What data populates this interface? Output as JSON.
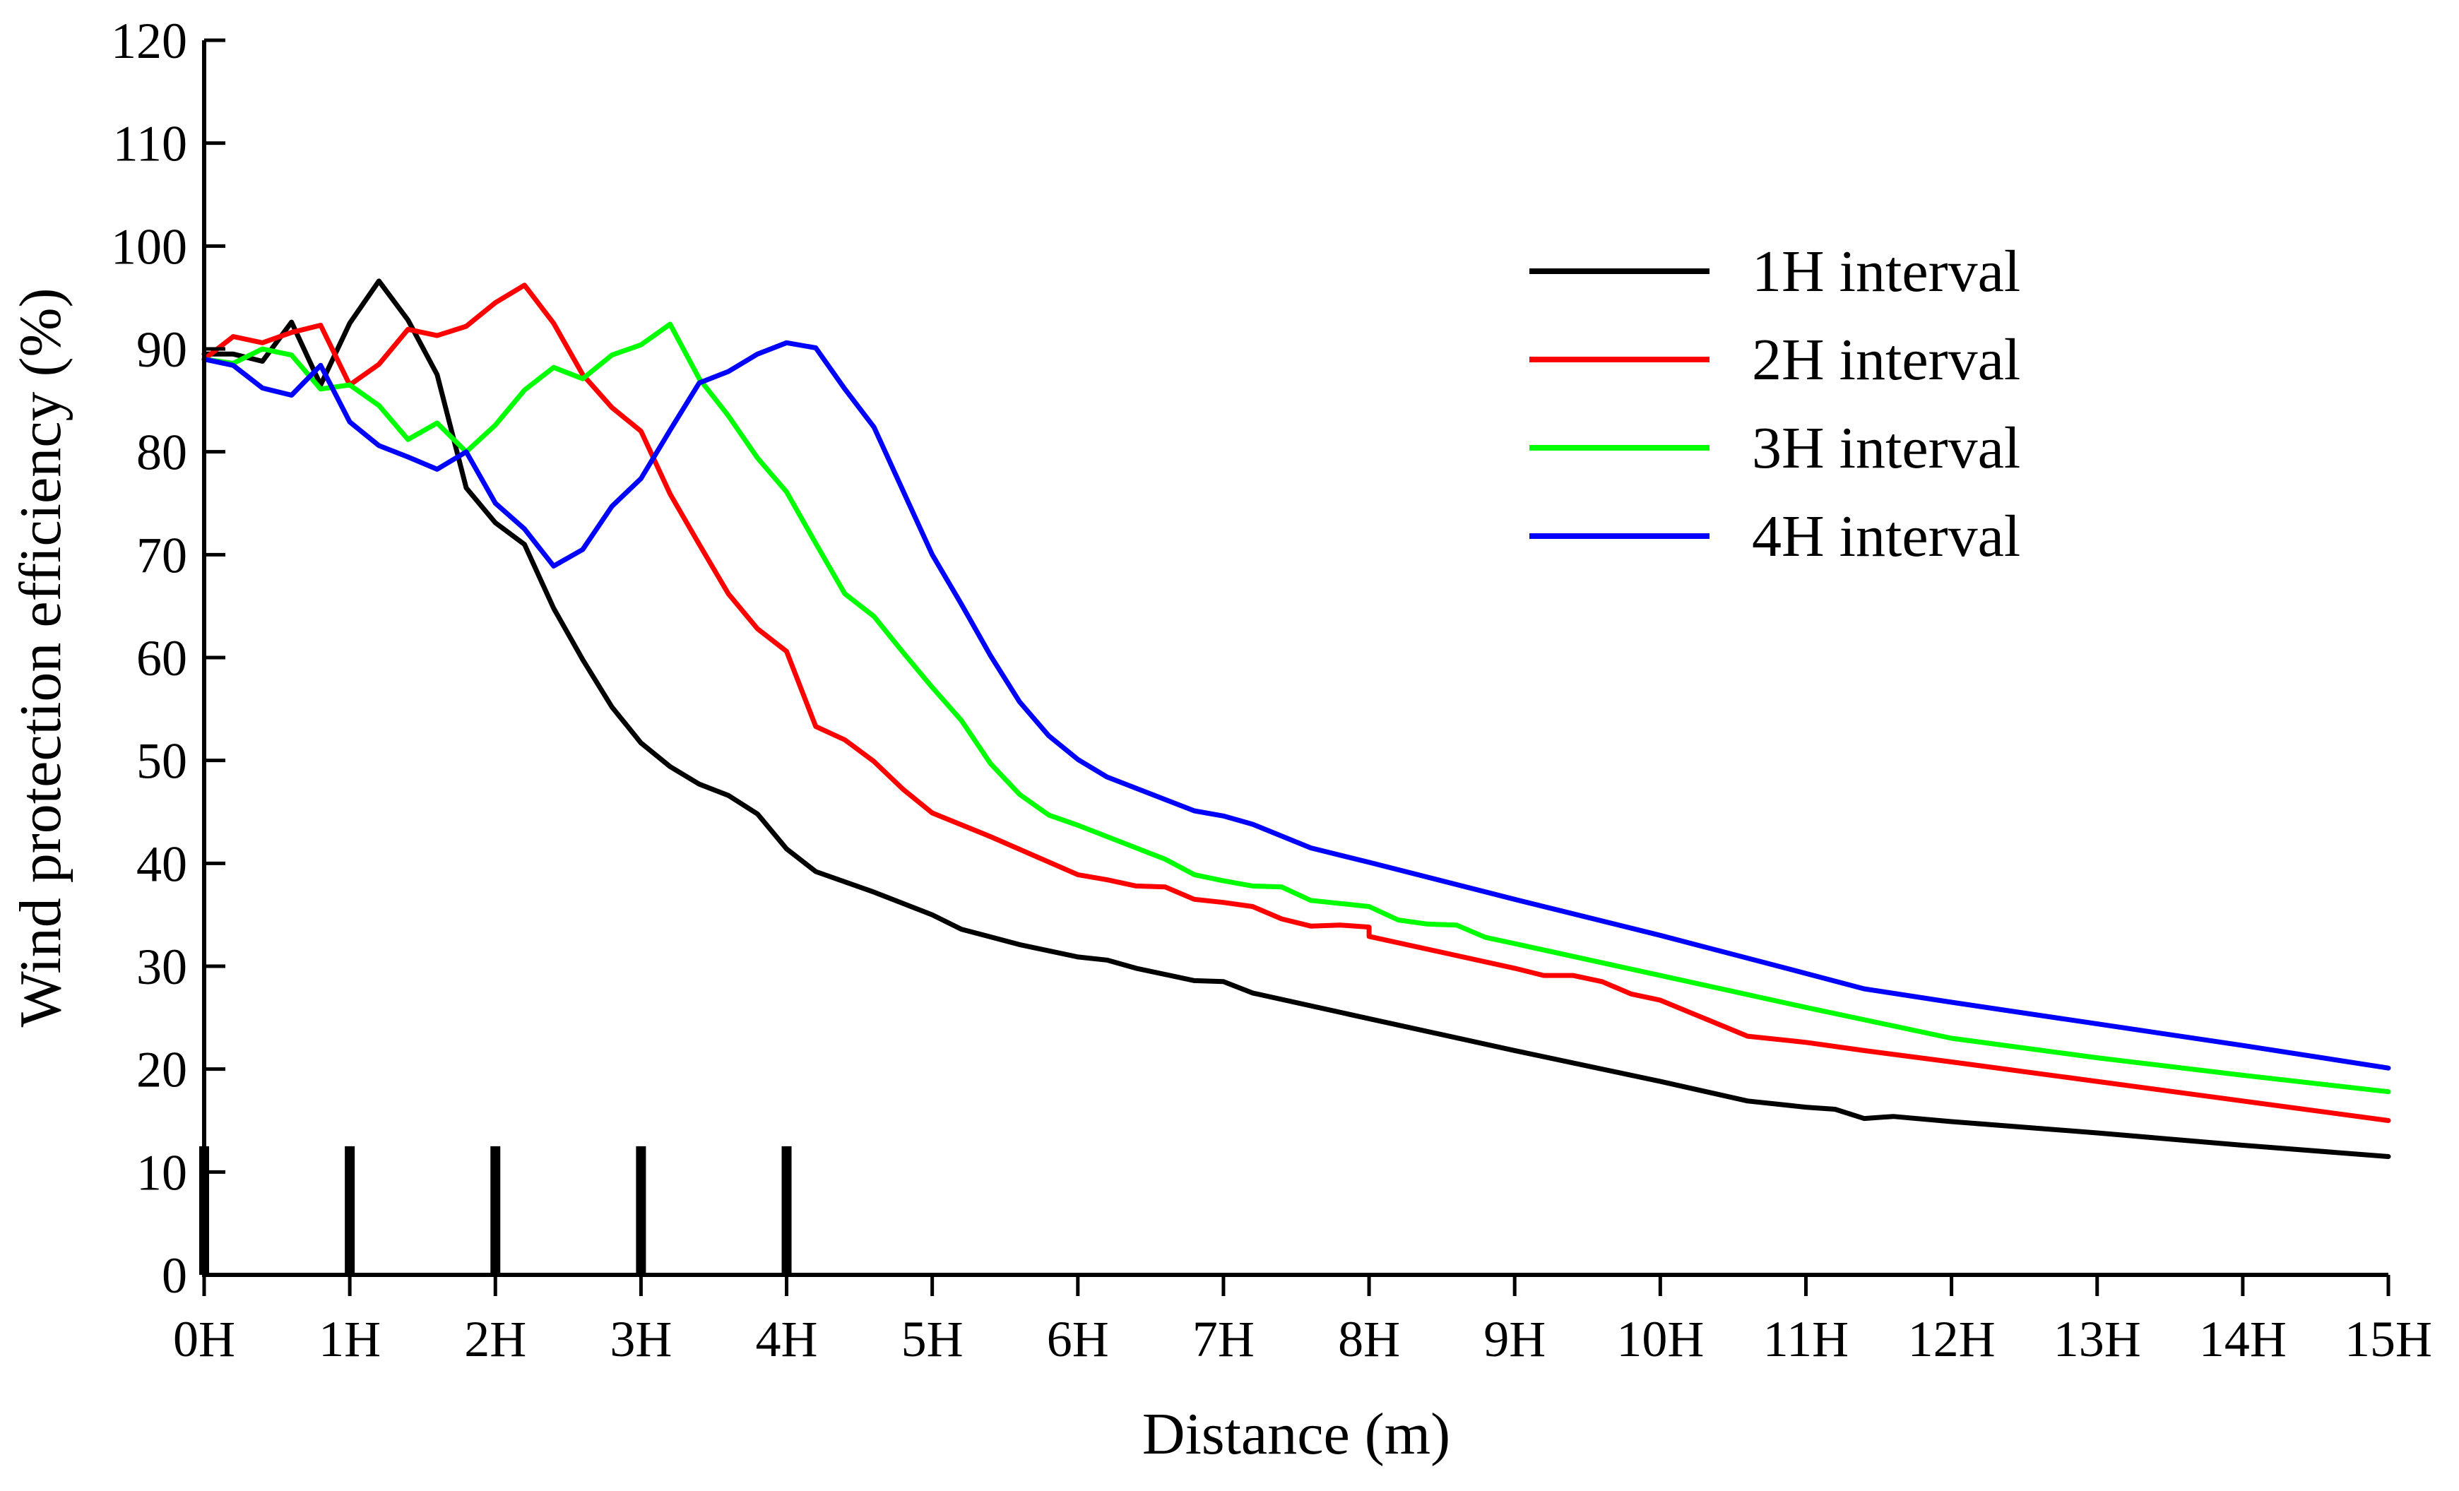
{
  "chart_data": {
    "type": "line",
    "title": "",
    "xlabel": "Distance (m)",
    "ylabel": "Wind protection efficiency (%)",
    "xlim": [
      0,
      15
    ],
    "ylim": [
      0,
      120
    ],
    "x_ticks": [
      0,
      1,
      2,
      3,
      4,
      5,
      6,
      7,
      8,
      9,
      10,
      11,
      12,
      13,
      14,
      15
    ],
    "x_tick_labels": [
      "0H",
      "1H",
      "2H",
      "3H",
      "4H",
      "5H",
      "6H",
      "7H",
      "8H",
      "9H",
      "10H",
      "11H",
      "12H",
      "13H",
      "14H",
      "15H"
    ],
    "y_ticks": [
      0,
      10,
      20,
      30,
      40,
      50,
      60,
      70,
      80,
      90,
      100,
      110,
      120
    ],
    "y_tick_labels": [
      "0",
      "10",
      "20",
      "30",
      "40",
      "50",
      "60",
      "70",
      "80",
      "90",
      "100",
      "110",
      "120"
    ],
    "legend_position": "upper-right",
    "barriers": {
      "positions": [
        0,
        1,
        2,
        3,
        4
      ],
      "height": 12.5,
      "color": "#000000"
    },
    "series": [
      {
        "name": "1H interval",
        "color": "#000000",
        "points": [
          [
            0,
            89.5
          ],
          [
            0.2,
            89.5
          ],
          [
            0.4,
            88.8
          ],
          [
            0.6,
            92.6
          ],
          [
            0.8,
            86.5
          ],
          [
            1.0,
            92.5
          ],
          [
            1.2,
            96.6
          ],
          [
            1.4,
            92.8
          ],
          [
            1.6,
            87.5
          ],
          [
            1.8,
            76.5
          ],
          [
            2.0,
            73.1
          ],
          [
            2.2,
            71
          ],
          [
            2.4,
            64.8
          ],
          [
            2.6,
            59.8
          ],
          [
            2.8,
            55.2
          ],
          [
            3.0,
            51.7
          ],
          [
            3.2,
            49.4
          ],
          [
            3.4,
            47.7
          ],
          [
            3.6,
            46.6
          ],
          [
            3.8,
            44.8
          ],
          [
            4.0,
            41.4
          ],
          [
            4.2,
            39.2
          ],
          [
            4.6,
            37.2
          ],
          [
            5.0,
            35
          ],
          [
            5.2,
            33.6
          ],
          [
            5.6,
            32.1
          ],
          [
            6.0,
            30.9
          ],
          [
            6.2,
            30.6
          ],
          [
            6.4,
            29.8
          ],
          [
            6.8,
            28.6
          ],
          [
            7.0,
            28.5
          ],
          [
            7.2,
            27.4
          ],
          [
            8.0,
            24.9
          ],
          [
            9.0,
            21.8
          ],
          [
            10.0,
            18.8
          ],
          [
            10.6,
            16.9
          ],
          [
            11.0,
            16.3
          ],
          [
            11.2,
            16.1
          ],
          [
            11.4,
            15.2
          ],
          [
            11.6,
            15.4
          ],
          [
            12.0,
            14.9
          ],
          [
            13.0,
            13.8
          ],
          [
            14.0,
            12.6
          ],
          [
            15.0,
            11.5
          ]
        ]
      },
      {
        "name": "2H interval",
        "color": "#ff0000",
        "points": [
          [
            0,
            89
          ],
          [
            0.2,
            91.2
          ],
          [
            0.4,
            90.6
          ],
          [
            0.6,
            91.6
          ],
          [
            0.8,
            92.3
          ],
          [
            1.0,
            86.5
          ],
          [
            1.2,
            88.5
          ],
          [
            1.4,
            91.9
          ],
          [
            1.6,
            91.3
          ],
          [
            1.8,
            92.2
          ],
          [
            2.0,
            94.5
          ],
          [
            2.2,
            96.2
          ],
          [
            2.4,
            92.5
          ],
          [
            2.6,
            87.5
          ],
          [
            2.8,
            84.3
          ],
          [
            3.0,
            82
          ],
          [
            3.2,
            75.9
          ],
          [
            3.4,
            71
          ],
          [
            3.6,
            66.2
          ],
          [
            3.8,
            62.8
          ],
          [
            4.0,
            60.6
          ],
          [
            4.2,
            53.3
          ],
          [
            4.4,
            52
          ],
          [
            4.6,
            49.9
          ],
          [
            4.8,
            47.2
          ],
          [
            5.0,
            44.9
          ],
          [
            5.4,
            42.6
          ],
          [
            6.0,
            38.9
          ],
          [
            6.2,
            38.4
          ],
          [
            6.4,
            37.8
          ],
          [
            6.6,
            37.7
          ],
          [
            6.8,
            36.5
          ],
          [
            7.0,
            36.2
          ],
          [
            7.2,
            35.8
          ],
          [
            7.4,
            34.6
          ],
          [
            7.6,
            33.9
          ],
          [
            7.8,
            34
          ],
          [
            8.0,
            33.8
          ],
          [
            8.0,
            32.9
          ],
          [
            9.0,
            29.8
          ],
          [
            9.2,
            29.1
          ],
          [
            9.4,
            29.1
          ],
          [
            9.6,
            28.5
          ],
          [
            9.8,
            27.3
          ],
          [
            10.0,
            26.7
          ],
          [
            10.6,
            23.2
          ],
          [
            11.0,
            22.6
          ],
          [
            11.4,
            21.8
          ],
          [
            12.0,
            20.7
          ],
          [
            13.0,
            18.8
          ],
          [
            14.0,
            16.9
          ],
          [
            15.0,
            15
          ]
        ]
      },
      {
        "name": "3H interval",
        "color": "#00ff00",
        "points": [
          [
            0,
            89
          ],
          [
            0.2,
            88.6
          ],
          [
            0.4,
            90
          ],
          [
            0.6,
            89.4
          ],
          [
            0.8,
            86.1
          ],
          [
            1.0,
            86.5
          ],
          [
            1.2,
            84.5
          ],
          [
            1.4,
            81.2
          ],
          [
            1.6,
            82.8
          ],
          [
            1.8,
            80
          ],
          [
            2.0,
            82.6
          ],
          [
            2.2,
            86
          ],
          [
            2.4,
            88.2
          ],
          [
            2.6,
            87.1
          ],
          [
            2.8,
            89.4
          ],
          [
            3.0,
            90.4
          ],
          [
            3.2,
            92.4
          ],
          [
            3.4,
            87.1
          ],
          [
            3.6,
            83.5
          ],
          [
            3.8,
            79.4
          ],
          [
            4.0,
            76.1
          ],
          [
            4.2,
            71.1
          ],
          [
            4.4,
            66.2
          ],
          [
            4.6,
            64
          ],
          [
            4.8,
            60.5
          ],
          [
            5.0,
            57.1
          ],
          [
            5.2,
            53.9
          ],
          [
            5.4,
            49.7
          ],
          [
            5.6,
            46.7
          ],
          [
            5.8,
            44.7
          ],
          [
            6.0,
            43.7
          ],
          [
            6.6,
            40.4
          ],
          [
            6.8,
            38.9
          ],
          [
            7.0,
            38.3
          ],
          [
            7.2,
            37.8
          ],
          [
            7.4,
            37.7
          ],
          [
            7.6,
            36.4
          ],
          [
            8.0,
            35.8
          ],
          [
            8.2,
            34.5
          ],
          [
            8.4,
            34.1
          ],
          [
            8.6,
            34
          ],
          [
            8.8,
            32.8
          ],
          [
            9.0,
            32.2
          ],
          [
            10.0,
            29.1
          ],
          [
            11.0,
            26
          ],
          [
            12.0,
            23
          ],
          [
            13.0,
            21.1
          ],
          [
            14.0,
            19.4
          ],
          [
            15.0,
            17.8
          ]
        ]
      },
      {
        "name": "4H interval",
        "color": "#0000ff",
        "points": [
          [
            0,
            89
          ],
          [
            0.2,
            88.4
          ],
          [
            0.4,
            86.2
          ],
          [
            0.6,
            85.5
          ],
          [
            0.8,
            88.4
          ],
          [
            1.0,
            82.9
          ],
          [
            1.2,
            80.6
          ],
          [
            1.4,
            79.5
          ],
          [
            1.6,
            78.3
          ],
          [
            1.8,
            80
          ],
          [
            2.0,
            75
          ],
          [
            2.2,
            72.5
          ],
          [
            2.4,
            68.9
          ],
          [
            2.6,
            70.5
          ],
          [
            2.8,
            74.7
          ],
          [
            3.0,
            77.4
          ],
          [
            3.2,
            82.1
          ],
          [
            3.4,
            86.7
          ],
          [
            3.6,
            87.8
          ],
          [
            3.8,
            89.5
          ],
          [
            4.0,
            90.6
          ],
          [
            4.2,
            90.1
          ],
          [
            4.4,
            86.1
          ],
          [
            4.6,
            82.4
          ],
          [
            4.8,
            76.2
          ],
          [
            5.0,
            70
          ],
          [
            5.2,
            65.2
          ],
          [
            5.4,
            60.2
          ],
          [
            5.6,
            55.7
          ],
          [
            5.8,
            52.4
          ],
          [
            6.0,
            50.1
          ],
          [
            6.2,
            48.4
          ],
          [
            6.8,
            45.1
          ],
          [
            7.0,
            44.6
          ],
          [
            7.2,
            43.8
          ],
          [
            7.6,
            41.5
          ],
          [
            8.0,
            40.1
          ],
          [
            9.0,
            36.5
          ],
          [
            10.0,
            33
          ],
          [
            11.0,
            29.3
          ],
          [
            11.4,
            27.8
          ],
          [
            12.0,
            26.5
          ],
          [
            13.0,
            24.4
          ],
          [
            14.0,
            22.3
          ],
          [
            15.0,
            20.1
          ]
        ]
      }
    ]
  }
}
